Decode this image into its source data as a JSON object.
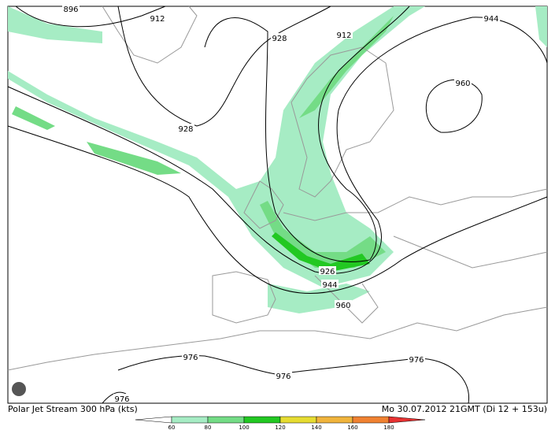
{
  "contour_labels": [
    "896",
    "912",
    "928",
    "912",
    "944",
    "960",
    "928",
    "926",
    "944",
    "960",
    "976",
    "976",
    "976",
    "976"
  ],
  "footer": {
    "title": "Polar Jet Stream 300 hPa (kts)",
    "date": "Mo 30.07.2012 21GMT (Di 12 + 153u)"
  },
  "legend": {
    "ticks": [
      "60",
      "80",
      "100",
      "120",
      "140",
      "160",
      "180"
    ],
    "colors": [
      "#ffffff",
      "#a6ecc4",
      "#74dc86",
      "#22c822",
      "#e6dc32",
      "#f0b43c",
      "#f08232",
      "#e63232"
    ]
  }
}
